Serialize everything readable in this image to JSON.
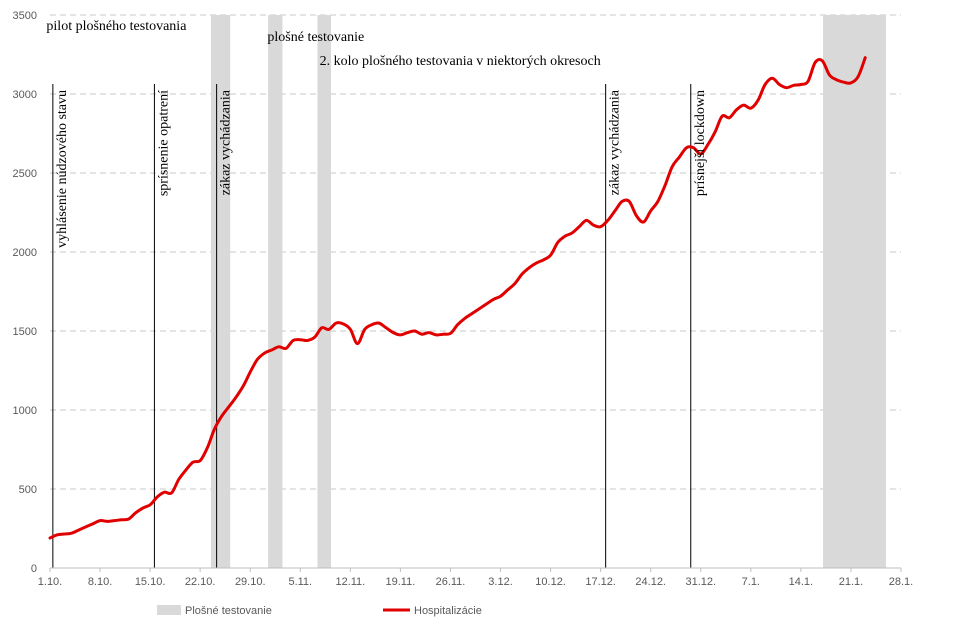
{
  "chart_data": {
    "type": "line",
    "y_ticks": [
      "0",
      "500",
      "1000",
      "1500",
      "2000",
      "2500",
      "3000",
      "3500"
    ],
    "x_ticks": [
      "1.10.",
      "8.10.",
      "15.10.",
      "22.10.",
      "29.10.",
      "5.11.",
      "12.11.",
      "19.11.",
      "26.11.",
      "3.12.",
      "10.12.",
      "17.12.",
      "24.12.",
      "31.12.",
      "7.1.",
      "14.1.",
      "21.1.",
      "28.1."
    ],
    "ylim": [
      0,
      3500
    ],
    "xlim_days": [
      0,
      119
    ],
    "x_axis": "days since 1.10.",
    "grid": "horizontal dashed",
    "legend_position": "bottom",
    "colors": {
      "line": "#e00000",
      "band": "#d9d9d9",
      "axis": "#bfbfbf",
      "grid": "#c8c8c8",
      "vline": "#000000"
    },
    "testing_bands": [
      {
        "from": 22.5,
        "to": 25.2
      },
      {
        "from": 30.5,
        "to": 32.5
      },
      {
        "from": 37.4,
        "to": 39.3
      },
      {
        "from": 108.1,
        "to": 116.9
      }
    ],
    "events": [
      {
        "day": 0.4,
        "label": "vyhlásenie núdzového stavu"
      },
      {
        "day": 14.6,
        "label": "sprísnenie opatrení"
      },
      {
        "day": 23.3,
        "label": "zákaz vychádzania"
      },
      {
        "day": 77.7,
        "label": "zákaz vychádzania"
      },
      {
        "day": 89.6,
        "label": "prísnejší lockdown"
      }
    ],
    "annotations": [
      {
        "text": "pilot plošného testovania",
        "day": -0.5,
        "y": 3405
      },
      {
        "text": "plošné testovanie",
        "day": 30.4,
        "y": 3335
      },
      {
        "text": "2. kolo plošného testovania v niektorých okresoch",
        "day": 37.7,
        "y": 3185
      }
    ],
    "series": [
      {
        "name": "Hospitalizácie",
        "points": [
          [
            0,
            190
          ],
          [
            1,
            210
          ],
          [
            2,
            215
          ],
          [
            3,
            220
          ],
          [
            4,
            240
          ],
          [
            5,
            260
          ],
          [
            6,
            280
          ],
          [
            7,
            300
          ],
          [
            8,
            295
          ],
          [
            9,
            300
          ],
          [
            10,
            305
          ],
          [
            11,
            310
          ],
          [
            12,
            350
          ],
          [
            13,
            380
          ],
          [
            14,
            400
          ],
          [
            15,
            450
          ],
          [
            16,
            480
          ],
          [
            17,
            475
          ],
          [
            18,
            560
          ],
          [
            19,
            620
          ],
          [
            20,
            670
          ],
          [
            21,
            680
          ],
          [
            22,
            760
          ],
          [
            23,
            880
          ],
          [
            24,
            960
          ],
          [
            25,
            1020
          ],
          [
            26,
            1080
          ],
          [
            27,
            1150
          ],
          [
            28,
            1240
          ],
          [
            29,
            1320
          ],
          [
            30,
            1360
          ],
          [
            31,
            1380
          ],
          [
            32,
            1400
          ],
          [
            33,
            1390
          ],
          [
            34,
            1440
          ],
          [
            35,
            1445
          ],
          [
            36,
            1440
          ],
          [
            37,
            1460
          ],
          [
            38,
            1520
          ],
          [
            39,
            1510
          ],
          [
            40,
            1550
          ],
          [
            41,
            1545
          ],
          [
            42,
            1510
          ],
          [
            43,
            1420
          ],
          [
            44,
            1510
          ],
          [
            45,
            1540
          ],
          [
            46,
            1550
          ],
          [
            47,
            1520
          ],
          [
            48,
            1490
          ],
          [
            49,
            1475
          ],
          [
            50,
            1490
          ],
          [
            51,
            1500
          ],
          [
            52,
            1480
          ],
          [
            53,
            1490
          ],
          [
            54,
            1475
          ],
          [
            55,
            1480
          ],
          [
            56,
            1485
          ],
          [
            57,
            1540
          ],
          [
            58,
            1580
          ],
          [
            59,
            1610
          ],
          [
            60,
            1640
          ],
          [
            61,
            1670
          ],
          [
            62,
            1700
          ],
          [
            63,
            1720
          ],
          [
            64,
            1760
          ],
          [
            65,
            1800
          ],
          [
            66,
            1860
          ],
          [
            67,
            1900
          ],
          [
            68,
            1930
          ],
          [
            69,
            1950
          ],
          [
            70,
            1980
          ],
          [
            71,
            2060
          ],
          [
            72,
            2100
          ],
          [
            73,
            2120
          ],
          [
            74,
            2160
          ],
          [
            75,
            2200
          ],
          [
            76,
            2170
          ],
          [
            77,
            2160
          ],
          [
            78,
            2200
          ],
          [
            79,
            2260
          ],
          [
            80,
            2320
          ],
          [
            81,
            2320
          ],
          [
            82,
            2230
          ],
          [
            83,
            2190
          ],
          [
            84,
            2260
          ],
          [
            85,
            2320
          ],
          [
            86,
            2420
          ],
          [
            87,
            2540
          ],
          [
            88,
            2600
          ],
          [
            89,
            2660
          ],
          [
            90,
            2660
          ],
          [
            91,
            2620
          ],
          [
            92,
            2680
          ],
          [
            93,
            2760
          ],
          [
            94,
            2860
          ],
          [
            95,
            2850
          ],
          [
            96,
            2900
          ],
          [
            97,
            2930
          ],
          [
            98,
            2910
          ],
          [
            99,
            2960
          ],
          [
            100,
            3060
          ],
          [
            101,
            3100
          ],
          [
            102,
            3060
          ],
          [
            103,
            3040
          ],
          [
            104,
            3055
          ],
          [
            105,
            3060
          ],
          [
            106,
            3080
          ],
          [
            107,
            3200
          ],
          [
            108,
            3210
          ],
          [
            109,
            3120
          ],
          [
            110,
            3090
          ],
          [
            111,
            3075
          ],
          [
            112,
            3070
          ],
          [
            113,
            3110
          ],
          [
            114,
            3230
          ]
        ]
      }
    ],
    "legend": {
      "band_label": "Plošné testovanie",
      "line_label": "Hospitalizácie"
    }
  }
}
